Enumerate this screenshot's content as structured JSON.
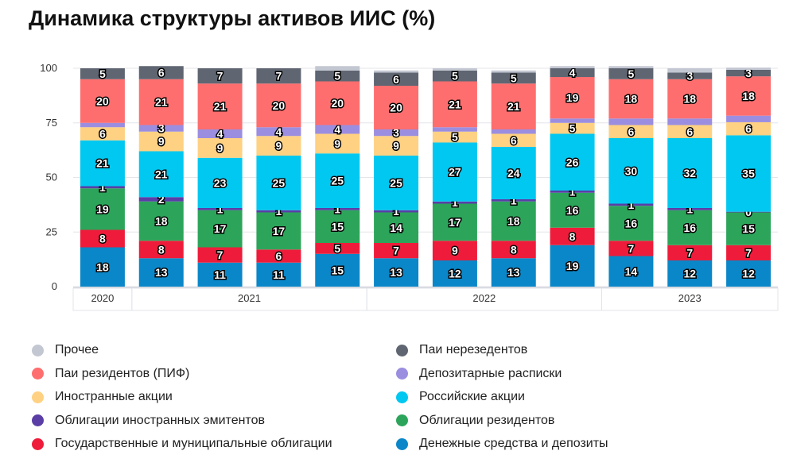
{
  "title": "Динамика структуры активов ИИС (%)",
  "chart_data": {
    "type": "bar",
    "stacked": true,
    "title": "Динамика структуры активов ИИС (%)",
    "ylim": [
      0,
      100
    ],
    "yticks": [
      0,
      25,
      50,
      75,
      100
    ],
    "grid": true,
    "legend_placement": "bottom",
    "year_groups": [
      {
        "label": "2020",
        "bars": 1
      },
      {
        "label": "2021",
        "bars": 4
      },
      {
        "label": "2022",
        "bars": 4
      },
      {
        "label": "2023",
        "bars": 3
      }
    ],
    "series": [
      {
        "name": "Денежные средства и депозиты",
        "color": "#0a87c8",
        "values": [
          18,
          13,
          11,
          11,
          15,
          13,
          12,
          13,
          19,
          14,
          12,
          12
        ],
        "labels": [
          18,
          13,
          11,
          11,
          15,
          13,
          12,
          13,
          19,
          14,
          12,
          12
        ]
      },
      {
        "name": "Государственные и муниципальные облигации",
        "color": "#ee1c3a",
        "values": [
          8,
          8,
          7,
          6,
          5,
          7,
          9,
          8,
          8,
          7,
          7,
          7
        ],
        "labels": [
          8,
          8,
          7,
          6,
          5,
          7,
          9,
          8,
          8,
          7,
          7,
          7
        ]
      },
      {
        "name": "Облигации резидентов",
        "color": "#2ca55a",
        "values": [
          19,
          18,
          17,
          17,
          15,
          14,
          17,
          18,
          16,
          16,
          16,
          15
        ],
        "labels": [
          19,
          18,
          17,
          17,
          15,
          14,
          17,
          18,
          16,
          16,
          16,
          15
        ]
      },
      {
        "name": "Облигации иностранных эмитентов",
        "color": "#5a3ea6",
        "values": [
          1,
          2,
          1,
          1,
          1,
          1,
          1,
          1,
          1,
          1,
          1,
          0.3
        ],
        "labels": [
          1,
          2,
          1,
          1,
          1,
          1,
          1,
          1,
          1,
          1,
          1,
          0
        ]
      },
      {
        "name": "Российские акции",
        "color": "#00c8f0",
        "values": [
          21,
          21,
          23,
          25,
          25,
          25,
          27,
          24,
          26,
          30,
          32,
          35
        ],
        "labels": [
          21,
          21,
          23,
          25,
          25,
          25,
          27,
          24,
          26,
          30,
          32,
          35
        ]
      },
      {
        "name": "Иностранные акции",
        "color": "#ffd182",
        "values": [
          6,
          9,
          9,
          9,
          9,
          9,
          5,
          6,
          5,
          6,
          6,
          6
        ],
        "labels": [
          6,
          9,
          9,
          9,
          9,
          9,
          5,
          6,
          5,
          6,
          6,
          6
        ]
      },
      {
        "name": "Депозитарные расписки",
        "color": "#9b8ee0",
        "values": [
          2,
          3,
          4,
          4,
          4,
          3,
          2,
          2,
          2,
          3,
          3,
          3
        ],
        "labels": [
          null,
          3,
          4,
          4,
          4,
          3,
          null,
          null,
          null,
          null,
          null,
          null
        ]
      },
      {
        "name": "Паи резидентов (ПИФ)",
        "color": "#ff6e6e",
        "values": [
          20,
          21,
          21,
          20,
          20,
          20,
          21,
          21,
          19,
          18,
          18,
          18
        ],
        "labels": [
          20,
          21,
          21,
          20,
          20,
          20,
          21,
          21,
          19,
          18,
          18,
          18
        ]
      },
      {
        "name": "Паи нерезедентов",
        "color": "#5f6672",
        "values": [
          5,
          6,
          7,
          7,
          5,
          6,
          5,
          5,
          4,
          5,
          3,
          3
        ],
        "labels": [
          5,
          6,
          7,
          7,
          5,
          6,
          5,
          5,
          4,
          5,
          3,
          3
        ]
      },
      {
        "name": "Прочее",
        "color": "#c3c7d2",
        "values": [
          0,
          0,
          0,
          0,
          2,
          1,
          1,
          1,
          1,
          1,
          2,
          1
        ],
        "labels": [
          null,
          null,
          null,
          null,
          null,
          null,
          null,
          null,
          null,
          null,
          null,
          null
        ]
      }
    ]
  },
  "legend_order": [
    9,
    8,
    7,
    6,
    5,
    4,
    3,
    2,
    1,
    0
  ]
}
